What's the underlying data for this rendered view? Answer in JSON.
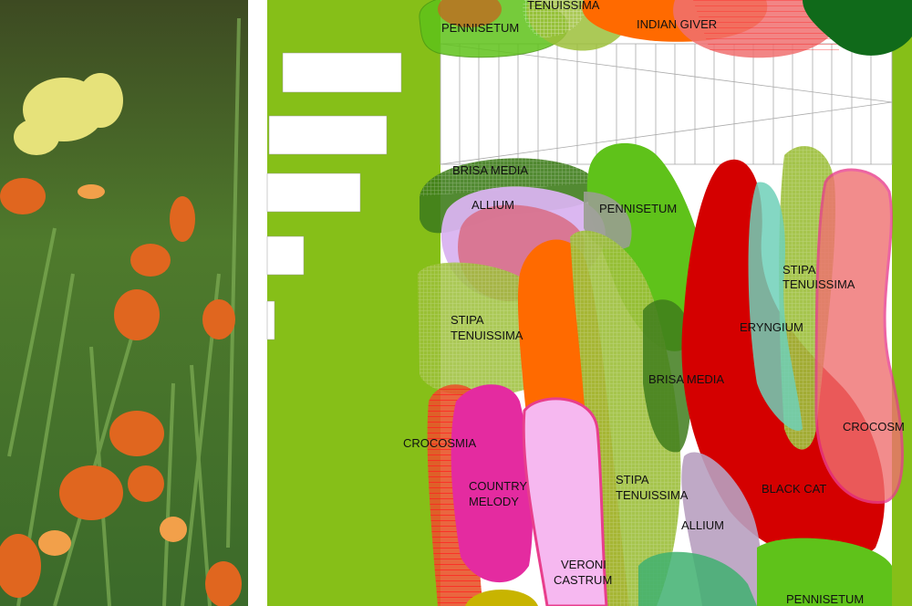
{
  "photo": {
    "subject": "daylily border photograph"
  },
  "colors": {
    "background_green": "#86bf18",
    "pennisetum": "#5fc21a",
    "stipa": "#9cbf3a",
    "brisa": "#3f7d1c",
    "allium": "#d9b3f0",
    "crocosmia": "#e8552a",
    "black_cat": "#d40000",
    "country_melody": "#e42ba0",
    "veronicastrum": "#f6b8f0",
    "indian_giver": "#ff6a00",
    "eryngium": "#6ed0b8"
  },
  "labels": {
    "pennisetum_top": "PENNISETUM",
    "tenuissima_top": "TENUISSIMA",
    "indian_giver": "INDIAN GIVER",
    "brisa_media_1": "BRISA MEDIA",
    "allium_1": "ALLIUM",
    "pennisetum_mid": "PENNISETUM",
    "stipa_1_a": "STIPA",
    "stipa_1_b": "TENUISSIMA",
    "stipa_2_a": "STIPA",
    "stipa_2_b": "TENUISSIMA",
    "eryngium": "ERYNGIUM",
    "brisa_media_2": "BRISA MEDIA",
    "crocosmia_1": "CROCOSMIA",
    "crocosmia_2": "CROCOSM",
    "country_melody_a": "COUNTRY",
    "country_melody_b": "MELODY",
    "stipa_3_a": "STIPA",
    "stipa_3_b": "TENUISSIMA",
    "black_cat": "BLACK CAT",
    "allium_2": "ALLIUM",
    "veroni_a": "VERONI",
    "veroni_b": "CASTRUM",
    "pennisetum_bottom": "PENNISETUM"
  }
}
